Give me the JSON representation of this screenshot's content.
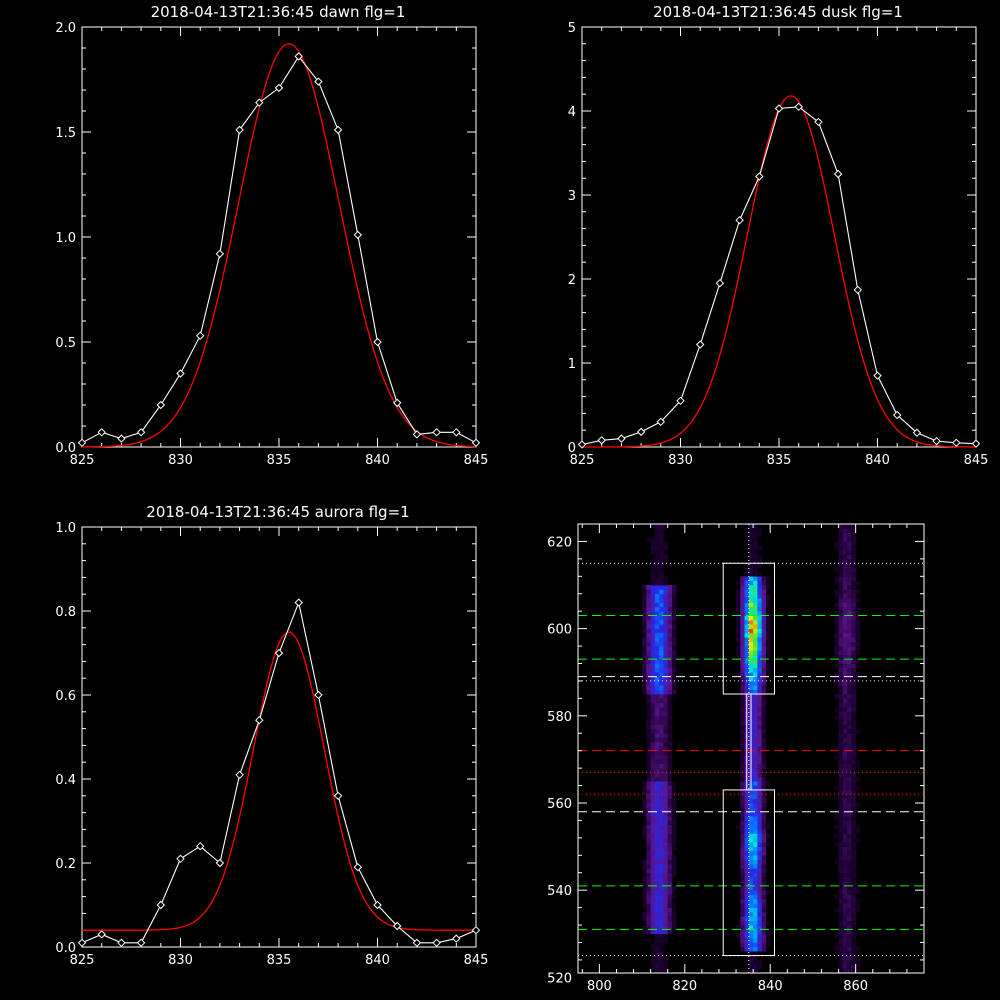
{
  "colors": {
    "background": "#000000",
    "axis": "#ffffff",
    "data": "#ffffff",
    "fit": "#ff0000"
  },
  "chart_data": [
    {
      "id": "dawn",
      "type": "line",
      "title": "2018-04-13T21:36:45 dawn flg=1",
      "xlim": [
        825,
        845
      ],
      "ylim": [
        0,
        2.0
      ],
      "xticks": [
        825,
        830,
        835,
        840,
        845
      ],
      "xtick_labels": [
        "825",
        "830",
        "835",
        "840",
        "845"
      ],
      "yticks": [
        0,
        0.5,
        1.0,
        1.5,
        2.0
      ],
      "ytick_labels": [
        "0.0",
        "0.5",
        "1.0",
        "1.5",
        "2.0"
      ],
      "series": [
        {
          "x": [
            825,
            826,
            827,
            828,
            829,
            830,
            831,
            832,
            833,
            834,
            835,
            836,
            837,
            838,
            839,
            840,
            841,
            842,
            843,
            844,
            845
          ],
          "y": [
            0.02,
            0.07,
            0.04,
            0.07,
            0.2,
            0.35,
            0.53,
            0.92,
            1.51,
            1.64,
            1.71,
            1.86,
            1.74,
            1.51,
            1.01,
            0.5,
            0.21,
            0.06,
            0.07,
            0.07,
            0.02
          ],
          "markers": true
        },
        {
          "fit": {
            "amplitude": 1.92,
            "center": 835.5,
            "sigma": 2.55,
            "offset": 0.0
          }
        }
      ]
    },
    {
      "id": "dusk",
      "type": "line",
      "title": "2018-04-13T21:36:45 dusk flg=1",
      "xlim": [
        825,
        845
      ],
      "ylim": [
        0,
        5
      ],
      "xticks": [
        825,
        830,
        835,
        840,
        845
      ],
      "xtick_labels": [
        "825",
        "830",
        "835",
        "840",
        "845"
      ],
      "yticks": [
        0,
        1,
        2,
        3,
        4,
        5
      ],
      "ytick_labels": [
        "0",
        "1",
        "2",
        "3",
        "4",
        "5"
      ],
      "series": [
        {
          "x": [
            825,
            826,
            827,
            828,
            829,
            830,
            831,
            832,
            833,
            834,
            835,
            836,
            837,
            838,
            839,
            840,
            841,
            842,
            843,
            844,
            845
          ],
          "y": [
            0.03,
            0.08,
            0.1,
            0.18,
            0.3,
            0.55,
            1.22,
            1.95,
            2.7,
            3.22,
            4.03,
            4.05,
            3.87,
            3.25,
            1.87,
            0.85,
            0.38,
            0.17,
            0.07,
            0.05,
            0.04
          ],
          "markers": true
        },
        {
          "fit": {
            "amplitude": 4.18,
            "center": 835.6,
            "sigma": 2.2,
            "offset": 0.0
          }
        }
      ]
    },
    {
      "id": "aurora",
      "type": "line",
      "title": "2018-04-13T21:36:45 aurora flg=1",
      "xlim": [
        825,
        845
      ],
      "ylim": [
        0,
        1.0
      ],
      "xticks": [
        825,
        830,
        835,
        840,
        845
      ],
      "xtick_labels": [
        "825",
        "830",
        "835",
        "840",
        "845"
      ],
      "yticks": [
        0,
        0.2,
        0.4,
        0.6,
        0.8,
        1.0
      ],
      "ytick_labels": [
        "0.0",
        "0.2",
        "0.4",
        "0.6",
        "0.8",
        "1.0"
      ],
      "series": [
        {
          "x": [
            825,
            826,
            827,
            828,
            829,
            830,
            831,
            832,
            833,
            834,
            835,
            836,
            837,
            838,
            839,
            840,
            841,
            842,
            843,
            844,
            845
          ],
          "y": [
            0.01,
            0.03,
            0.01,
            0.01,
            0.1,
            0.21,
            0.24,
            0.2,
            0.41,
            0.54,
            0.7,
            0.82,
            0.6,
            0.36,
            0.19,
            0.1,
            0.05,
            0.01,
            0.01,
            0.02,
            0.04
          ],
          "markers": true
        },
        {
          "fit": {
            "amplitude": 0.71,
            "center": 835.5,
            "sigma": 1.8,
            "offset": 0.04
          }
        }
      ]
    },
    {
      "id": "image",
      "type": "heatmap",
      "title": "",
      "xlim": [
        795,
        876
      ],
      "ylim": [
        521,
        624
      ],
      "xticks": [
        800,
        820,
        840,
        860
      ],
      "xtick_labels": [
        "800",
        "820",
        "840",
        "860"
      ],
      "yticks": [
        520,
        540,
        560,
        580,
        600,
        620
      ],
      "ytick_labels": [
        "520",
        "540",
        "560",
        "580",
        "600",
        "620"
      ],
      "emission_columns": [
        {
          "x": 814,
          "width": 2.0,
          "intensity": 0.45
        },
        {
          "x": 836,
          "width": 1.6,
          "intensity": 0.95
        },
        {
          "x": 858,
          "width": 1.8,
          "intensity": 0.22
        }
      ],
      "vline_x": 835,
      "boxes": [
        {
          "x0": 829,
          "x1": 841,
          "y0": 585,
          "y1": 615
        },
        {
          "x0": 829,
          "x1": 841,
          "y0": 525,
          "y1": 563
        },
        {
          "x0": 834.5,
          "x1": 835.5,
          "y0": 563,
          "y1": 585
        }
      ],
      "hlines": [
        {
          "y": 603,
          "color": "#00ff00",
          "style": "dashed"
        },
        {
          "y": 593,
          "color": "#00ff00",
          "style": "dashed"
        },
        {
          "y": 589,
          "color": "#ffffff",
          "style": "dashed"
        },
        {
          "y": 541,
          "color": "#00ff00",
          "style": "dashed"
        },
        {
          "y": 531,
          "color": "#00ff00",
          "style": "dashed"
        },
        {
          "y": 558,
          "color": "#ffffff",
          "style": "dashed"
        },
        {
          "y": 572,
          "color": "#ff0000",
          "style": "dashed"
        },
        {
          "y": 567,
          "color": "#ff0000",
          "style": "dotted"
        },
        {
          "y": 562,
          "color": "#ff0000",
          "style": "dotted"
        },
        {
          "y": 615,
          "color": "#ffffff",
          "style": "dotted"
        },
        {
          "y": 588,
          "color": "#ffffff",
          "style": "dotted"
        },
        {
          "y": 525,
          "color": "#ffffff",
          "style": "dotted"
        }
      ]
    }
  ]
}
